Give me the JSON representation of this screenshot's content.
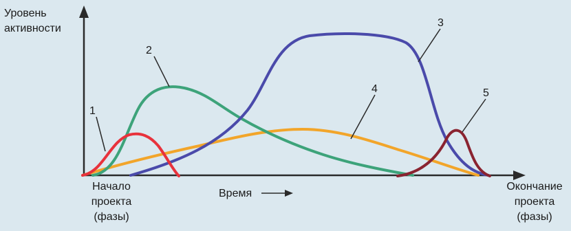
{
  "y_axis_label": [
    "Уровень",
    "активности"
  ],
  "x_axis_label": "Время",
  "start_label": [
    "Начало",
    "проекта",
    "(фазы)"
  ],
  "end_label": [
    "Окончание",
    "проекта",
    "(фазы)"
  ],
  "colors": {
    "background": "#dbe8ef",
    "axis": "#2a2a2a",
    "curve_1": "#e8323c",
    "curve_2": "#3da37a",
    "curve_3": "#4a4aaa",
    "curve_4": "#f2a52a",
    "curve_5": "#8a2330"
  },
  "chart_data": {
    "type": "line",
    "xlabel": "Время",
    "ylabel": "Уровень активности",
    "x": [
      "Начало проекта (фазы)",
      "Окончание проекта (фазы)"
    ],
    "series": [
      {
        "name": "1"
      },
      {
        "name": "2"
      },
      {
        "name": "3"
      },
      {
        "name": "4"
      },
      {
        "name": "5"
      }
    ]
  }
}
